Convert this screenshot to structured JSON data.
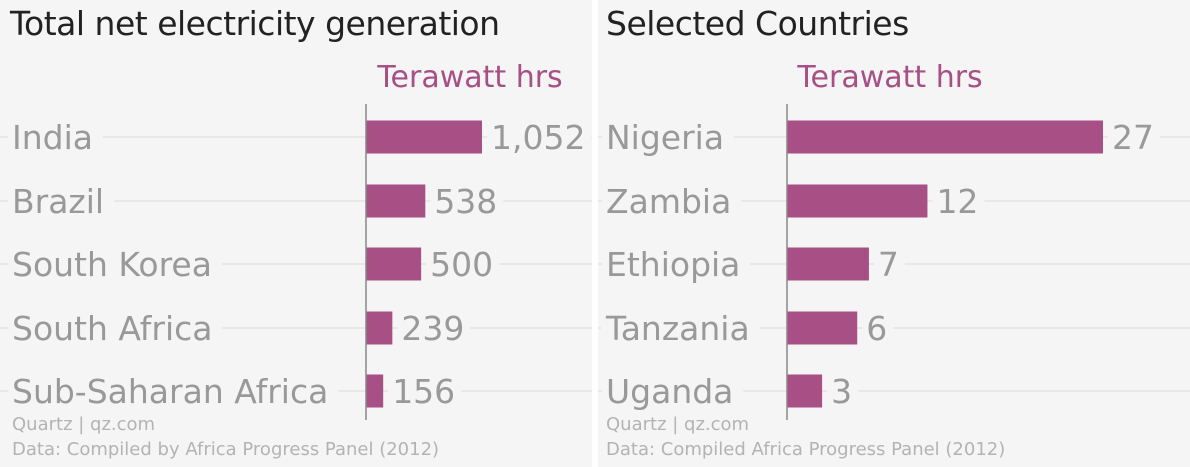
{
  "colors": {
    "bar": "#a84f86",
    "unit_label": "#a84f86",
    "category_label": "#999999",
    "value_label": "#999999",
    "title": "#222222",
    "footer": "#b3b3b3",
    "gridline": "#e3e3e3",
    "axis": "#888888",
    "panel_background": "#f5f5f5"
  },
  "chart_data": [
    {
      "type": "bar",
      "orientation": "horizontal",
      "title": "Total net electricity generation",
      "unit_label": "Terawatt hrs",
      "categories": [
        "India",
        "Brazil",
        "South Korea",
        "South Africa",
        "Sub-Saharan Africa"
      ],
      "values": [
        1052,
        538,
        500,
        239,
        156
      ],
      "value_labels": [
        "1,052",
        "538",
        "500",
        "239",
        "156"
      ],
      "xlim": [
        0,
        1052
      ],
      "grid": true,
      "credit": "Quartz | qz.com",
      "source": "Data: Compiled by Africa Progress Panel (2012)"
    },
    {
      "type": "bar",
      "orientation": "horizontal",
      "title": "Selected Countries",
      "unit_label": "Terawatt hrs",
      "categories": [
        "Nigeria",
        "Zambia",
        "Ethiopia",
        "Tanzania",
        "Uganda"
      ],
      "values": [
        27,
        12,
        7,
        6,
        3
      ],
      "value_labels": [
        "27",
        "12",
        "7",
        "6",
        "3"
      ],
      "xlim": [
        0,
        27
      ],
      "grid": true,
      "credit": "Quartz | qz.com",
      "source": "Data: Compiled Africa Progress Panel (2012)"
    }
  ]
}
